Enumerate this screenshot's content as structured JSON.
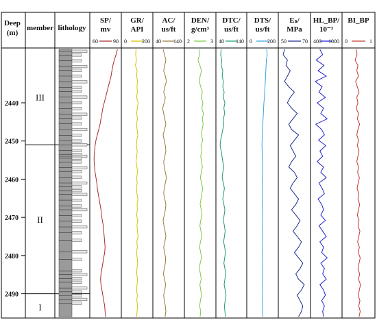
{
  "chart_data": {
    "type": "line",
    "depth": {
      "header": "Deep",
      "unit": "(m)",
      "range": [
        2426,
        2496
      ],
      "ticks": [
        2440,
        2450,
        2460,
        2470,
        2480,
        2490
      ]
    },
    "members": {
      "header": "member",
      "zones": [
        {
          "label": "III",
          "top": 2426,
          "bottom": 2451,
          "label_depth": 2438.5
        },
        {
          "label": "II",
          "top": 2451,
          "bottom": 2490,
          "label_depth": 2470.5
        },
        {
          "label": "I",
          "top": 2490,
          "bottom": 2496,
          "label_depth": 2493.5
        }
      ]
    },
    "lithology": {
      "header": "lithology",
      "marker_depths": [
        2426.5,
        2427.5,
        2429,
        2430.5,
        2431.5,
        2433,
        2434.5,
        2436,
        2437,
        2438.5,
        2440,
        2441.5,
        2443,
        2444,
        2445.5,
        2447,
        2448.5,
        2450,
        2451,
        2452.5,
        2453.5,
        2454,
        2454.5,
        2455.5,
        2457,
        2458,
        2459.5,
        2461,
        2462,
        2463,
        2464,
        2465.5,
        2467,
        2468,
        2469.5,
        2471,
        2472.5,
        2474,
        2476,
        2479,
        2481,
        2484,
        2485,
        2486,
        2487,
        2488.5,
        2489.5,
        2490.5,
        2491.5,
        2492.5
      ]
    },
    "tracks": [
      {
        "name": "SP/",
        "unit": "mv",
        "min": 60,
        "max": 90,
        "range_labels": [
          "60",
          "90"
        ],
        "color": "#a52a2a",
        "values": [
          88.0,
          86.5,
          84.5,
          83.0,
          82.0,
          81.0,
          79.5,
          78.0,
          76.5,
          75.0,
          73.5,
          72.0,
          71.0,
          70.0,
          69.0,
          67.5,
          66.0,
          64.5,
          63.5,
          63.0,
          62.5,
          62.5,
          63.0,
          63.5,
          64.5,
          65.5,
          66.0,
          67.0,
          68.0,
          69.0,
          70.0,
          70.5,
          71.5,
          72.5,
          73.0,
          73.5,
          74.0,
          74.5,
          74.0,
          73.0,
          72.0,
          71.0,
          70.0,
          69.5,
          70.0,
          71.0,
          72.0,
          73.0,
          74.0,
          74.5,
          75.0
        ]
      },
      {
        "name": "GR/",
        "unit": "API",
        "min": 0,
        "max": 200,
        "range_labels": [
          "0",
          "200"
        ],
        "color": "#d4c400",
        "values": [
          92,
          90,
          95,
          88,
          100,
          96,
          104,
          99,
          102,
          96,
          108,
          101,
          97,
          103,
          95,
          100,
          106,
          98,
          94,
          101,
          97,
          92,
          99,
          104,
          96,
          101,
          95,
          99,
          106,
          100,
          102,
          96,
          105,
          99,
          103,
          107,
          98,
          102,
          95,
          101,
          104,
          99,
          97,
          103,
          100,
          96,
          102,
          98,
          104,
          100,
          97
        ]
      },
      {
        "name": "AC/",
        "unit": "us/ft",
        "min": 40,
        "max": 140,
        "range_labels": [
          "40",
          "140"
        ],
        "color": "#9a7a3c",
        "values": [
          70,
          75,
          80,
          76,
          72,
          78,
          82,
          76,
          72,
          78,
          74,
          68,
          72,
          76,
          80,
          75,
          70,
          74,
          78,
          80,
          76,
          72,
          74,
          78,
          82,
          78,
          74,
          72,
          76,
          80,
          78,
          74,
          70,
          73,
          77,
          80,
          76,
          72,
          75,
          79,
          78,
          74,
          71,
          75,
          79,
          76,
          72,
          74,
          78,
          80,
          77
        ]
      },
      {
        "name": "DEN/",
        "unit": "g/cm³",
        "min": 2,
        "max": 3,
        "range_labels": [
          "2",
          "3"
        ],
        "color": "#7ac943",
        "values": [
          2.46,
          2.48,
          2.42,
          2.49,
          2.55,
          2.5,
          2.47,
          2.52,
          2.58,
          2.54,
          2.6,
          2.56,
          2.62,
          2.58,
          2.61,
          2.57,
          2.55,
          2.59,
          2.53,
          2.56,
          2.52,
          2.55,
          2.58,
          2.54,
          2.51,
          2.55,
          2.59,
          2.56,
          2.53,
          2.5,
          2.54,
          2.57,
          2.52,
          2.49,
          2.53,
          2.56,
          2.51,
          2.48,
          2.52,
          2.55,
          2.5,
          2.47,
          2.51,
          2.54,
          2.49,
          2.52,
          2.55,
          2.51,
          2.48,
          2.52,
          2.5
        ]
      },
      {
        "name": "DTC/",
        "unit": "us/ft",
        "min": 40,
        "max": 140,
        "range_labels": [
          "40",
          "140"
        ],
        "color": "#1f9a6a",
        "values": [
          52,
          50,
          54,
          52,
          58,
          56,
          60,
          58,
          63,
          60,
          66,
          62,
          65,
          60,
          62,
          58,
          54,
          50,
          48,
          52,
          55,
          58,
          62,
          58,
          56,
          60,
          64,
          61,
          58,
          62,
          66,
          63,
          60,
          64,
          67,
          64,
          61,
          65,
          68,
          65,
          62,
          66,
          69,
          66,
          63,
          67,
          70,
          67,
          64,
          66,
          68
        ]
      },
      {
        "name": "DTS/",
        "unit": "us/ft",
        "min": 0,
        "max": 200,
        "range_labels": [
          "0",
          "200"
        ],
        "color": "#3aa0e0",
        "values": [
          130,
          134,
          128,
          126,
          124,
          122,
          120,
          118,
          116,
          114,
          110,
          108,
          106,
          104,
          102,
          100,
          98,
          97,
          96,
          97,
          99,
          100,
          101,
          100,
          99,
          98,
          100,
          101,
          99,
          98,
          100,
          101,
          102,
          100,
          99,
          101,
          102,
          100,
          99,
          101,
          102,
          100,
          101,
          99,
          100,
          102,
          101,
          99,
          100,
          101,
          102
        ]
      },
      {
        "name": "Eₛ/",
        "unit": "MPa",
        "min": 50,
        "max": 70,
        "range_labels": [
          "50",
          "70"
        ],
        "color": "#1a2a8a",
        "values": [
          53,
          52,
          55,
          54,
          57,
          55,
          53,
          56,
          60,
          57,
          55,
          58,
          62,
          59,
          56,
          58,
          63,
          60,
          57,
          59,
          61,
          58,
          56,
          60,
          62,
          59,
          57,
          60,
          63,
          61,
          58,
          61,
          64,
          62,
          59,
          62,
          65,
          63,
          60,
          63,
          66,
          64,
          61,
          63,
          67,
          65,
          62,
          64,
          66,
          65,
          63
        ]
      },
      {
        "name": "HL_BP/",
        "unit": "10⁻³",
        "min": 400,
        "max": 1000,
        "range_labels": [
          "400",
          "1000"
        ],
        "color": "#2020d0",
        "values": [
          560,
          620,
          480,
          650,
          520,
          700,
          460,
          610,
          540,
          680,
          500,
          640,
          580,
          720,
          470,
          600,
          660,
          530,
          690,
          560,
          620,
          500,
          640,
          580,
          700,
          540,
          610,
          660,
          520,
          600,
          640,
          580,
          680,
          540,
          620,
          700,
          560,
          640,
          600,
          720,
          580,
          660,
          620,
          700,
          560,
          640,
          680,
          600,
          660,
          620,
          640
        ]
      },
      {
        "name": "BI_BP",
        "unit": "",
        "min": 0,
        "max": 1,
        "range_labels": [
          "0",
          "1"
        ],
        "color": "#c0392b",
        "values": [
          0.42,
          0.45,
          0.38,
          0.48,
          0.44,
          0.5,
          0.4,
          0.46,
          0.52,
          0.44,
          0.48,
          0.42,
          0.5,
          0.46,
          0.54,
          0.48,
          0.44,
          0.5,
          0.46,
          0.52,
          0.48,
          0.44,
          0.5,
          0.47,
          0.53,
          0.49,
          0.45,
          0.51,
          0.48,
          0.54,
          0.5,
          0.46,
          0.52,
          0.48,
          0.55,
          0.51,
          0.47,
          0.53,
          0.49,
          0.56,
          0.52,
          0.48,
          0.54,
          0.5,
          0.57,
          0.53,
          0.49,
          0.55,
          0.51,
          0.56,
          0.52
        ]
      }
    ]
  }
}
